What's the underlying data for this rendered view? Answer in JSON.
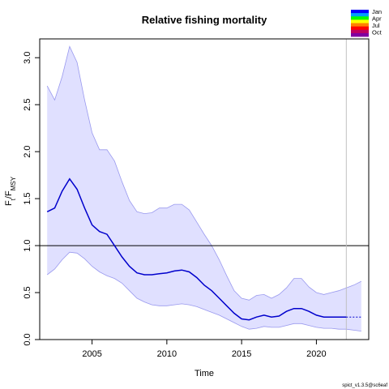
{
  "chart_data": {
    "type": "line",
    "title": "Relative fishing mortality",
    "xlabel": "Time",
    "ylabel": "F",
    "ylabel_sub": "t",
    "ylabel_den": "/F",
    "ylabel_den_sub": "MSY",
    "xlim": [
      2001.5,
      2023.5
    ],
    "ylim": [
      0,
      3.2
    ],
    "x_ticks": [
      2005,
      2010,
      2015,
      2020
    ],
    "y_ticks": [
      0.0,
      0.5,
      1.0,
      1.5,
      2.0,
      2.5,
      3.0
    ],
    "y_tick_labels": [
      "0.0",
      "0.5",
      "1.0",
      "1.5",
      "2.0",
      "2.5",
      "3.0"
    ],
    "reference_line_y": 1.0,
    "vertical_line_x": 2022.0,
    "series": [
      {
        "role": "estimate",
        "color": "#0000cc",
        "x": [
          2002,
          2002.5,
          2003,
          2003.5,
          2004,
          2004.5,
          2005,
          2005.5,
          2006,
          2006.5,
          2007,
          2007.5,
          2008,
          2008.5,
          2009,
          2009.5,
          2010,
          2010.5,
          2011,
          2011.5,
          2012,
          2012.5,
          2013,
          2013.5,
          2014,
          2014.5,
          2015,
          2015.5,
          2016,
          2016.5,
          2017,
          2017.5,
          2018,
          2018.5,
          2019,
          2019.5,
          2020,
          2020.5,
          2021,
          2021.5,
          2022
        ],
        "y": [
          1.36,
          1.4,
          1.58,
          1.71,
          1.6,
          1.4,
          1.22,
          1.15,
          1.12,
          1.0,
          0.88,
          0.78,
          0.71,
          0.69,
          0.69,
          0.7,
          0.71,
          0.73,
          0.74,
          0.72,
          0.66,
          0.58,
          0.52,
          0.44,
          0.36,
          0.28,
          0.22,
          0.21,
          0.24,
          0.26,
          0.24,
          0.25,
          0.3,
          0.33,
          0.33,
          0.3,
          0.26,
          0.24,
          0.24,
          0.24,
          0.24
        ]
      },
      {
        "role": "forecast",
        "color": "#0000cc",
        "dashed": true,
        "x": [
          2022,
          2022.5,
          2023
        ],
        "y": [
          0.24,
          0.24,
          0.24
        ]
      }
    ],
    "confidence_band": {
      "fill": "#e0e0ff",
      "stroke": "#9999ee",
      "x": [
        2002,
        2002.5,
        2003,
        2003.5,
        2004,
        2004.5,
        2005,
        2005.5,
        2006,
        2006.5,
        2007,
        2007.5,
        2008,
        2008.5,
        2009,
        2009.5,
        2010,
        2010.5,
        2011,
        2011.5,
        2012,
        2012.5,
        2013,
        2013.5,
        2014,
        2014.5,
        2015,
        2015.5,
        2016,
        2016.5,
        2017,
        2017.5,
        2018,
        2018.5,
        2019,
        2019.5,
        2020,
        2020.5,
        2021,
        2021.5,
        2022,
        2022.5,
        2023
      ],
      "upper": [
        2.7,
        2.55,
        2.8,
        3.12,
        2.95,
        2.55,
        2.2,
        2.02,
        2.02,
        1.9,
        1.68,
        1.48,
        1.36,
        1.34,
        1.35,
        1.4,
        1.4,
        1.44,
        1.44,
        1.38,
        1.25,
        1.12,
        1.0,
        0.85,
        0.68,
        0.52,
        0.44,
        0.42,
        0.47,
        0.48,
        0.44,
        0.48,
        0.55,
        0.65,
        0.65,
        0.56,
        0.5,
        0.48,
        0.5,
        0.52,
        0.55,
        0.58,
        0.62
      ],
      "lower": [
        0.69,
        0.75,
        0.85,
        0.93,
        0.92,
        0.86,
        0.78,
        0.72,
        0.68,
        0.65,
        0.6,
        0.52,
        0.44,
        0.4,
        0.37,
        0.36,
        0.36,
        0.37,
        0.38,
        0.37,
        0.35,
        0.32,
        0.29,
        0.26,
        0.22,
        0.18,
        0.14,
        0.11,
        0.12,
        0.14,
        0.13,
        0.13,
        0.15,
        0.17,
        0.17,
        0.15,
        0.13,
        0.12,
        0.12,
        0.11,
        0.11,
        0.1,
        0.09
      ]
    },
    "legend": {
      "position": "top-right",
      "labels": [
        "Jan",
        "Apr",
        "Jul",
        "Oct"
      ],
      "gradient": [
        "#0000ff",
        "#00a0ff",
        "#00ff00",
        "#ffff00",
        "#ff8000",
        "#ff0000",
        "#c00060",
        "#8000a0"
      ]
    },
    "grid": false
  },
  "footer": {
    "version": "spict_v1.3.5@sc6eaf"
  }
}
